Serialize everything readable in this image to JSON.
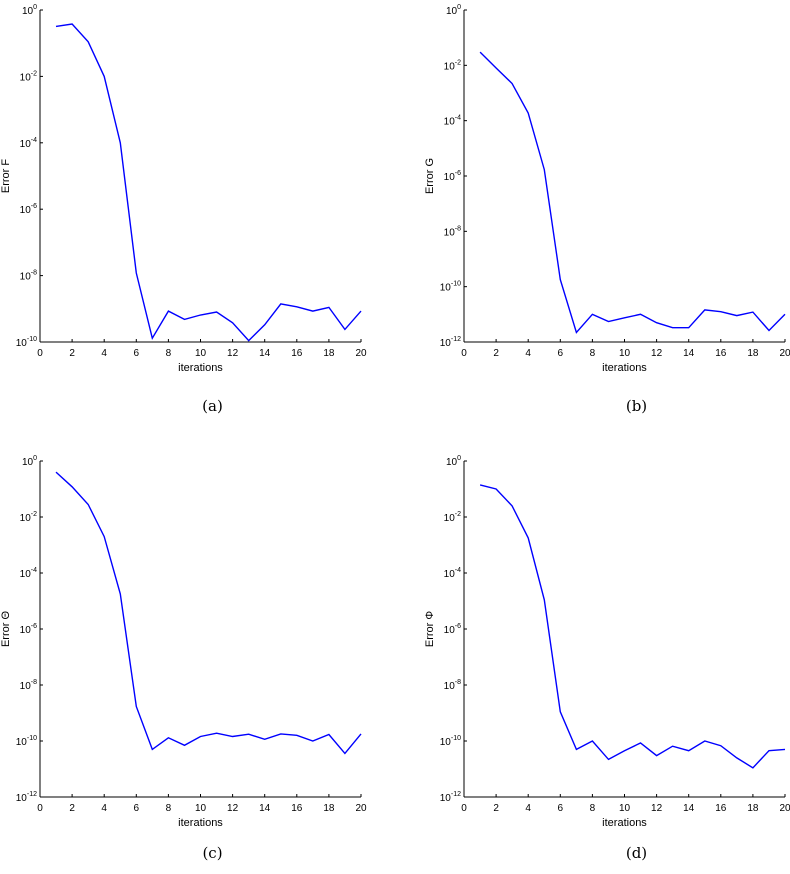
{
  "chart_data": [
    {
      "type": "line",
      "panel": "a",
      "caption": "(a)",
      "title": "",
      "xlabel": "iterations",
      "ylabel": "Error F",
      "yscale": "log",
      "xlim": [
        0,
        20
      ],
      "ylim": [
        1e-10,
        1
      ],
      "xticks": [
        "0",
        "2",
        "4",
        "6",
        "8",
        "10",
        "12",
        "14",
        "16",
        "18",
        "20"
      ],
      "yticks": [
        {
          "base": "10",
          "exp": "0"
        },
        {
          "base": "10",
          "exp": "-2"
        },
        {
          "base": "10",
          "exp": "-4"
        },
        {
          "base": "10",
          "exp": "-6"
        },
        {
          "base": "10",
          "exp": "-8"
        },
        {
          "base": "10",
          "exp": "-10"
        }
      ],
      "color": "#0000ff",
      "x": [
        1,
        2,
        3,
        4,
        5,
        6,
        7,
        8,
        9,
        10,
        11,
        12,
        13,
        14,
        15,
        16,
        17,
        18,
        19,
        20
      ],
      "y": [
        0.32,
        0.38,
        0.11,
        0.01,
        0.0001,
        1.2e-08,
        1.3e-10,
        8.5e-10,
        4.8e-10,
        6.5e-10,
        8e-10,
        3.8e-10,
        1.1e-10,
        3.3e-10,
        1.4e-09,
        1.15e-09,
        8.5e-10,
        1.1e-09,
        2.4e-10,
        8.5e-10
      ]
    },
    {
      "type": "line",
      "panel": "b",
      "caption": "(b)",
      "title": "",
      "xlabel": "iterations",
      "ylabel": "Error G",
      "yscale": "log",
      "xlim": [
        0,
        20
      ],
      "ylim": [
        1e-12,
        1
      ],
      "xticks": [
        "0",
        "2",
        "4",
        "6",
        "8",
        "10",
        "12",
        "14",
        "16",
        "18",
        "20"
      ],
      "yticks": [
        {
          "base": "10",
          "exp": "0"
        },
        {
          "base": "10",
          "exp": "-2"
        },
        {
          "base": "10",
          "exp": "-4"
        },
        {
          "base": "10",
          "exp": "-6"
        },
        {
          "base": "10",
          "exp": "-8"
        },
        {
          "base": "10",
          "exp": "-10"
        },
        {
          "base": "10",
          "exp": "-12"
        }
      ],
      "color": "#0000ff",
      "x": [
        1,
        2,
        3,
        4,
        5,
        6,
        7,
        8,
        9,
        10,
        11,
        12,
        13,
        14,
        15,
        16,
        17,
        18,
        19,
        20
      ],
      "y": [
        0.03,
        0.008,
        0.0022,
        0.00019,
        1.7e-06,
        1.8e-10,
        2.2e-12,
        1e-11,
        5.5e-12,
        7.5e-12,
        1e-11,
        5e-12,
        3.3e-12,
        3.3e-12,
        1.45e-11,
        1.25e-11,
        9e-12,
        1.2e-11,
        2.6e-12,
        1e-11
      ]
    },
    {
      "type": "line",
      "panel": "c",
      "caption": "(c)",
      "title": "",
      "xlabel": "iterations",
      "ylabel": "Error Θ",
      "yscale": "log",
      "xlim": [
        0,
        20
      ],
      "ylim": [
        1e-12,
        1
      ],
      "xticks": [
        "0",
        "2",
        "4",
        "6",
        "8",
        "10",
        "12",
        "14",
        "16",
        "18",
        "20"
      ],
      "yticks": [
        {
          "base": "10",
          "exp": "0"
        },
        {
          "base": "10",
          "exp": "-2"
        },
        {
          "base": "10",
          "exp": "-4"
        },
        {
          "base": "10",
          "exp": "-6"
        },
        {
          "base": "10",
          "exp": "-8"
        },
        {
          "base": "10",
          "exp": "-10"
        },
        {
          "base": "10",
          "exp": "-12"
        }
      ],
      "color": "#0000ff",
      "x": [
        1,
        2,
        3,
        4,
        5,
        6,
        7,
        8,
        9,
        10,
        11,
        12,
        13,
        14,
        15,
        16,
        17,
        18,
        19,
        20
      ],
      "y": [
        0.4,
        0.12,
        0.028,
        0.002,
        1.8e-05,
        1.7e-09,
        5e-11,
        1.3e-10,
        7e-11,
        1.45e-10,
        1.9e-10,
        1.45e-10,
        1.75e-10,
        1.15e-10,
        1.8e-10,
        1.6e-10,
        1e-10,
        1.7e-10,
        3.6e-11,
        1.8e-10
      ]
    },
    {
      "type": "line",
      "panel": "d",
      "caption": "(d)",
      "title": "",
      "xlabel": "iterations",
      "ylabel": "Error Φ",
      "yscale": "log",
      "xlim": [
        0,
        20
      ],
      "ylim": [
        1e-12,
        1
      ],
      "xticks": [
        "0",
        "2",
        "4",
        "6",
        "8",
        "10",
        "12",
        "14",
        "16",
        "18",
        "20"
      ],
      "yticks": [
        {
          "base": "10",
          "exp": "0"
        },
        {
          "base": "10",
          "exp": "-2"
        },
        {
          "base": "10",
          "exp": "-4"
        },
        {
          "base": "10",
          "exp": "-6"
        },
        {
          "base": "10",
          "exp": "-8"
        },
        {
          "base": "10",
          "exp": "-10"
        },
        {
          "base": "10",
          "exp": "-12"
        }
      ],
      "color": "#0000ff",
      "x": [
        1,
        2,
        3,
        4,
        5,
        6,
        7,
        8,
        9,
        10,
        11,
        12,
        13,
        14,
        15,
        16,
        17,
        18,
        19,
        20
      ],
      "y": [
        0.14,
        0.1,
        0.025,
        0.0018,
        1.1e-05,
        1.1e-09,
        5e-11,
        1e-10,
        2.2e-11,
        4.5e-11,
        8.5e-11,
        3e-11,
        6.5e-11,
        4.5e-11,
        1e-10,
        6.8e-11,
        2.5e-11,
        1.1e-11,
        4.5e-11,
        5e-11
      ]
    }
  ]
}
